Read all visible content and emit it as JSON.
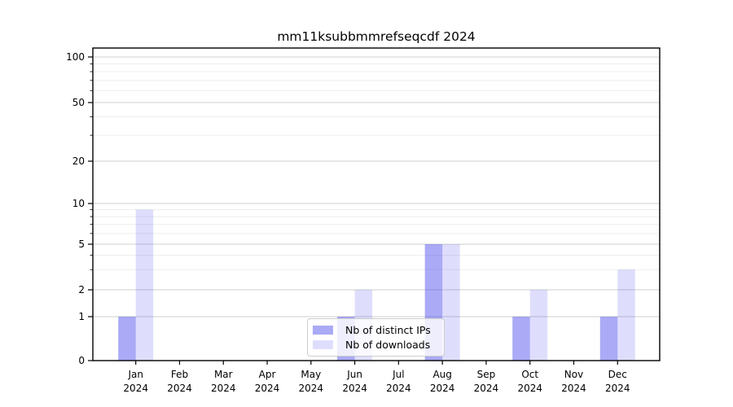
{
  "title": "mm11ksubbmmrefseqcdf 2024",
  "chart_data": {
    "type": "bar",
    "title": "mm11ksubbmmrefseqcdf 2024",
    "categories": [
      "Jan 2024",
      "Feb 2024",
      "Mar 2024",
      "Apr 2024",
      "May 2024",
      "Jun 2024",
      "Jul 2024",
      "Aug 2024",
      "Sep 2024",
      "Oct 2024",
      "Nov 2024",
      "Dec 2024"
    ],
    "series": [
      {
        "name": "Nb of distinct IPs",
        "color": "rgba(62,62,235,0.44)",
        "values": [
          1,
          0,
          0,
          0,
          0,
          1,
          0,
          5,
          0,
          1,
          0,
          1
        ]
      },
      {
        "name": "Nb of downloads",
        "color": "rgba(62,62,235,0.17)",
        "values": [
          9,
          0,
          0,
          0,
          0,
          2,
          0,
          5,
          0,
          2,
          0,
          3
        ]
      }
    ],
    "yaxis": {
      "scale": "symlog",
      "ylim": [
        0,
        100
      ],
      "ticks": [
        0,
        1,
        2,
        5,
        10,
        20,
        50,
        100
      ],
      "minor_ticks": [
        3,
        4,
        6,
        7,
        8,
        9,
        30,
        40,
        60,
        70,
        80,
        90
      ]
    },
    "xlabel": "",
    "ylabel": "",
    "grid": "both",
    "legend": {
      "position": "bottom-center",
      "entries": [
        "Nb of distinct IPs",
        "Nb of downloads"
      ]
    }
  },
  "colors": {
    "grid_major": "#cfcfcf",
    "grid_minor": "#ededed",
    "spine": "#000000"
  }
}
